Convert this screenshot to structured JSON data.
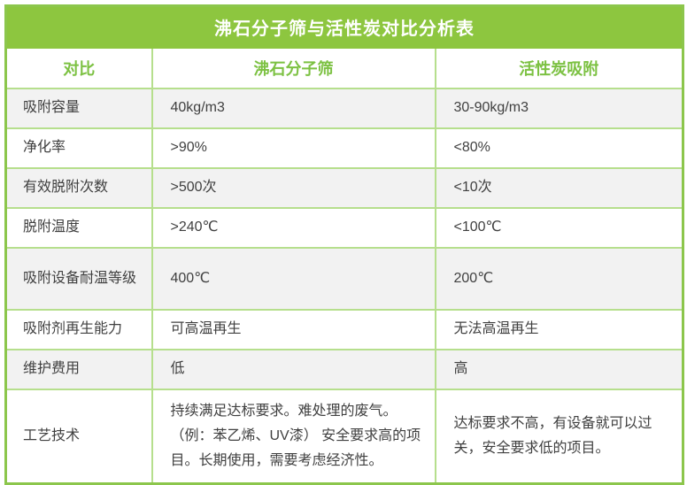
{
  "table": {
    "title": "沸石分子筛与活性炭对比分析表"
  },
  "chart_data": {
    "type": "table",
    "title": "沸石分子筛与活性炭对比分析表",
    "columns": [
      "对比",
      "沸石分子筛",
      "活性炭吸附"
    ],
    "rows": [
      {
        "label": "吸附容量",
        "zeolite": "40kg/m3",
        "carbon": "30-90kg/m3"
      },
      {
        "label": "净化率",
        "zeolite": ">90%",
        "carbon": "<80%"
      },
      {
        "label": "有效脱附次数",
        "zeolite": ">500次",
        "carbon": "<10次"
      },
      {
        "label": "脱附温度",
        "zeolite": ">240℃",
        "carbon": "<100℃"
      },
      {
        "label": "吸附设备耐温等级",
        "zeolite": "400℃",
        "carbon": "200℃"
      },
      {
        "label": "吸附剂再生能力",
        "zeolite": "可高温再生",
        "carbon": "无法高温再生"
      },
      {
        "label": "维护费用",
        "zeolite": "低",
        "carbon": "高"
      },
      {
        "label": "工艺技术",
        "zeolite": "持续满足达标要求。难处理的废气。（例：苯乙烯、UV漆） 安全要求高的项目。长期使用，需要考虑经济性。",
        "carbon": "达标要求不高，有设备就可以过关，安全要求低的项目。"
      }
    ],
    "layout": {
      "grid": true,
      "alternating_rows": true
    }
  },
  "colors": {
    "header_green": "#8dc63f",
    "header_text_green": "#7cc142",
    "grid_line_green": "#b6df8d",
    "outer_border_green": "#8cc64c",
    "alt_row_gray": "#f2f2f2",
    "body_text": "#404040",
    "title_text": "#ffffff"
  }
}
